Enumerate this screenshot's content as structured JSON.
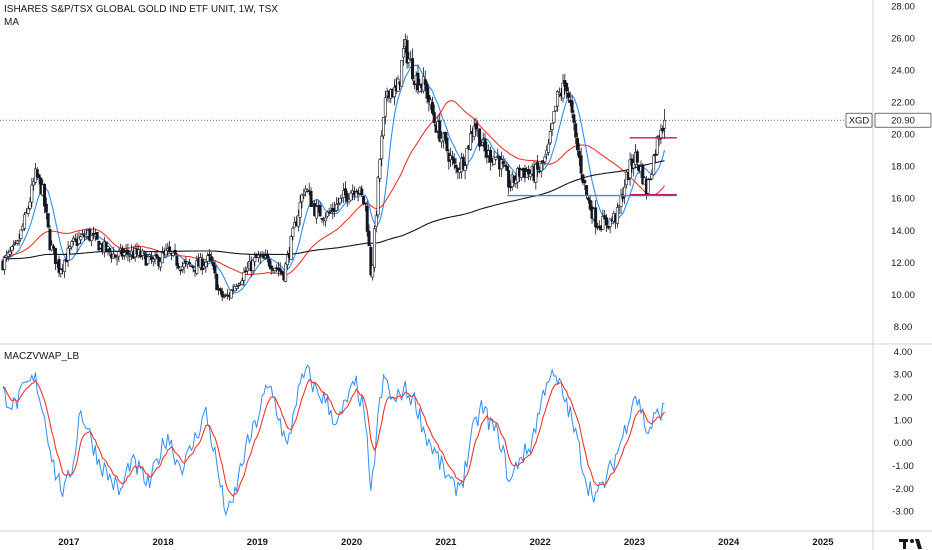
{
  "header": {
    "title": "ISHARES S&P/TSX GLOBAL GOLD IND ETF UNIT, 1W, TSX",
    "indicator_label": "MA",
    "oscillator_label": "MACZVWAP_LB"
  },
  "price_tag": {
    "symbol": "XGD",
    "value": "20.90"
  },
  "colors": {
    "up": "#ffffff",
    "down": "#131722",
    "ma_short": "#2f8ef5",
    "ma_mid": "#f2362b",
    "ma_long": "#131722",
    "osc_line": "#2f8ef5",
    "osc_signal": "#f2362b",
    "support": "#2f8ef5",
    "resistance": "#c2185b"
  },
  "chart_data": [
    {
      "type": "candlestick",
      "title": "ISHARES S&P/TSX GLOBAL GOLD IND ETF UNIT, 1W, TSX",
      "ylim": [
        7.0,
        28.4
      ],
      "y_ticks": [
        "8.00",
        "10.00",
        "12.00",
        "14.00",
        "16.00",
        "18.00",
        "20.00",
        "22.00",
        "24.00",
        "26.00",
        "28.00"
      ],
      "x_ticks": [
        "2017",
        "2018",
        "2019",
        "2020",
        "2021",
        "2022",
        "2023",
        "2024",
        "2025"
      ],
      "xlim": [
        2016.27,
        2025.52
      ],
      "last_price": 20.9,
      "anchors": [
        [
          2016.3,
          12.0
        ],
        [
          2016.45,
          13.0
        ],
        [
          2016.55,
          15.0
        ],
        [
          2016.65,
          17.5
        ],
        [
          2016.72,
          16.5
        ],
        [
          2016.8,
          13.2
        ],
        [
          2016.9,
          11.6
        ],
        [
          2017.05,
          13.2
        ],
        [
          2017.2,
          13.8
        ],
        [
          2017.35,
          13.0
        ],
        [
          2017.5,
          12.4
        ],
        [
          2017.6,
          12.6
        ],
        [
          2017.75,
          12.5
        ],
        [
          2017.9,
          12.0
        ],
        [
          2018.05,
          12.6
        ],
        [
          2018.2,
          11.8
        ],
        [
          2018.35,
          11.8
        ],
        [
          2018.5,
          12.2
        ],
        [
          2018.6,
          10.0
        ],
        [
          2018.68,
          9.8
        ],
        [
          2018.78,
          10.8
        ],
        [
          2018.9,
          11.6
        ],
        [
          2019.0,
          12.3
        ],
        [
          2019.15,
          12.0
        ],
        [
          2019.28,
          11.3
        ],
        [
          2019.38,
          13.8
        ],
        [
          2019.5,
          16.8
        ],
        [
          2019.62,
          15.2
        ],
        [
          2019.75,
          15.0
        ],
        [
          2019.9,
          16.0
        ],
        [
          2020.05,
          16.8
        ],
        [
          2020.15,
          15.5
        ],
        [
          2020.21,
          11.0
        ],
        [
          2020.3,
          18.5
        ],
        [
          2020.38,
          23.0
        ],
        [
          2020.48,
          22.5
        ],
        [
          2020.56,
          25.5
        ],
        [
          2020.68,
          23.5
        ],
        [
          2020.78,
          23.0
        ],
        [
          2020.88,
          20.8
        ],
        [
          2020.98,
          19.5
        ],
        [
          2021.1,
          17.8
        ],
        [
          2021.2,
          18.5
        ],
        [
          2021.3,
          20.8
        ],
        [
          2021.42,
          18.8
        ],
        [
          2021.55,
          18.6
        ],
        [
          2021.68,
          16.8
        ],
        [
          2021.8,
          17.8
        ],
        [
          2021.92,
          17.5
        ],
        [
          2022.0,
          17.8
        ],
        [
          2022.08,
          18.8
        ],
        [
          2022.18,
          22.2
        ],
        [
          2022.28,
          23.2
        ],
        [
          2022.38,
          19.5
        ],
        [
          2022.5,
          16.0
        ],
        [
          2022.6,
          14.5
        ],
        [
          2022.72,
          14.5
        ],
        [
          2022.82,
          15.0
        ],
        [
          2022.9,
          17.0
        ],
        [
          2023.0,
          18.7
        ],
        [
          2023.07,
          17.8
        ],
        [
          2023.13,
          16.5
        ],
        [
          2023.22,
          19.0
        ],
        [
          2023.28,
          20.6
        ],
        [
          2023.33,
          20.9
        ]
      ],
      "series": [
        {
          "name": "MA 10",
          "period": 10
        },
        {
          "name": "MA 40",
          "period": 40
        },
        {
          "name": "MA 200",
          "period": 200
        }
      ],
      "horizontal_lines": [
        {
          "color": "support",
          "value": 16.2,
          "x_from": 2021.65,
          "x_to": 2023.45
        },
        {
          "color": "resistance",
          "value": 19.8,
          "x_from": 2022.95,
          "x_to": 2023.45
        },
        {
          "color": "resistance",
          "value": 16.25,
          "x_from": 2022.95,
          "x_to": 2023.45
        }
      ]
    },
    {
      "type": "line",
      "title": "MACZVWAP_LB",
      "ylim": [
        -3.8,
        4.3
      ],
      "y_ticks": [
        "-3.00",
        "-2.00",
        "-1.00",
        "0.00",
        "1.00",
        "2.00",
        "3.00",
        "4.00"
      ],
      "anchors": [
        [
          2016.3,
          2.2
        ],
        [
          2016.42,
          1.6
        ],
        [
          2016.55,
          2.5
        ],
        [
          2016.65,
          2.8
        ],
        [
          2016.75,
          1.0
        ],
        [
          2016.85,
          -1.2
        ],
        [
          2016.95,
          -2.2
        ],
        [
          2017.05,
          -0.8
        ],
        [
          2017.12,
          1.5
        ],
        [
          2017.22,
          0.4
        ],
        [
          2017.32,
          -0.8
        ],
        [
          2017.45,
          -1.6
        ],
        [
          2017.55,
          -2.2
        ],
        [
          2017.65,
          -0.8
        ],
        [
          2017.75,
          -1.2
        ],
        [
          2017.85,
          -1.9
        ],
        [
          2017.95,
          -0.6
        ],
        [
          2018.05,
          0.4
        ],
        [
          2018.15,
          -0.8
        ],
        [
          2018.22,
          -1.0
        ],
        [
          2018.35,
          0.3
        ],
        [
          2018.45,
          1.4
        ],
        [
          2018.55,
          -0.5
        ],
        [
          2018.65,
          -2.8
        ],
        [
          2018.72,
          -3.0
        ],
        [
          2018.8,
          -1.5
        ],
        [
          2018.88,
          -0.2
        ],
        [
          2018.98,
          0.8
        ],
        [
          2019.08,
          2.2
        ],
        [
          2019.15,
          2.4
        ],
        [
          2019.25,
          0.8
        ],
        [
          2019.32,
          -0.3
        ],
        [
          2019.4,
          1.8
        ],
        [
          2019.52,
          3.2
        ],
        [
          2019.62,
          2.3
        ],
        [
          2019.72,
          1.9
        ],
        [
          2019.85,
          0.8
        ],
        [
          2019.95,
          1.9
        ],
        [
          2020.05,
          2.6
        ],
        [
          2020.15,
          1.0
        ],
        [
          2020.2,
          -2.6
        ],
        [
          2020.28,
          1.2
        ],
        [
          2020.35,
          2.9
        ],
        [
          2020.45,
          1.7
        ],
        [
          2020.55,
          2.4
        ],
        [
          2020.68,
          1.8
        ],
        [
          2020.78,
          0.4
        ],
        [
          2020.88,
          -0.4
        ],
        [
          2020.98,
          -1.2
        ],
        [
          2021.08,
          -2.0
        ],
        [
          2021.18,
          -1.6
        ],
        [
          2021.28,
          0.4
        ],
        [
          2021.38,
          1.6
        ],
        [
          2021.48,
          0.8
        ],
        [
          2021.58,
          0.1
        ],
        [
          2021.68,
          -1.8
        ],
        [
          2021.78,
          -0.6
        ],
        [
          2021.88,
          -0.3
        ],
        [
          2021.98,
          1.2
        ],
        [
          2022.08,
          3.0
        ],
        [
          2022.2,
          2.6
        ],
        [
          2022.3,
          1.5
        ],
        [
          2022.4,
          0.0
        ],
        [
          2022.5,
          -1.8
        ],
        [
          2022.6,
          -2.3
        ],
        [
          2022.7,
          -1.6
        ],
        [
          2022.8,
          -0.6
        ],
        [
          2022.9,
          0.6
        ],
        [
          2023.0,
          2.2
        ],
        [
          2023.08,
          1.4
        ],
        [
          2023.14,
          0.4
        ],
        [
          2023.2,
          1.0
        ],
        [
          2023.28,
          1.4
        ],
        [
          2023.33,
          1.5
        ]
      ],
      "series": [
        {
          "name": "osc_line",
          "source": "anchors"
        },
        {
          "name": "osc_signal",
          "source": "ema_8"
        }
      ]
    }
  ]
}
